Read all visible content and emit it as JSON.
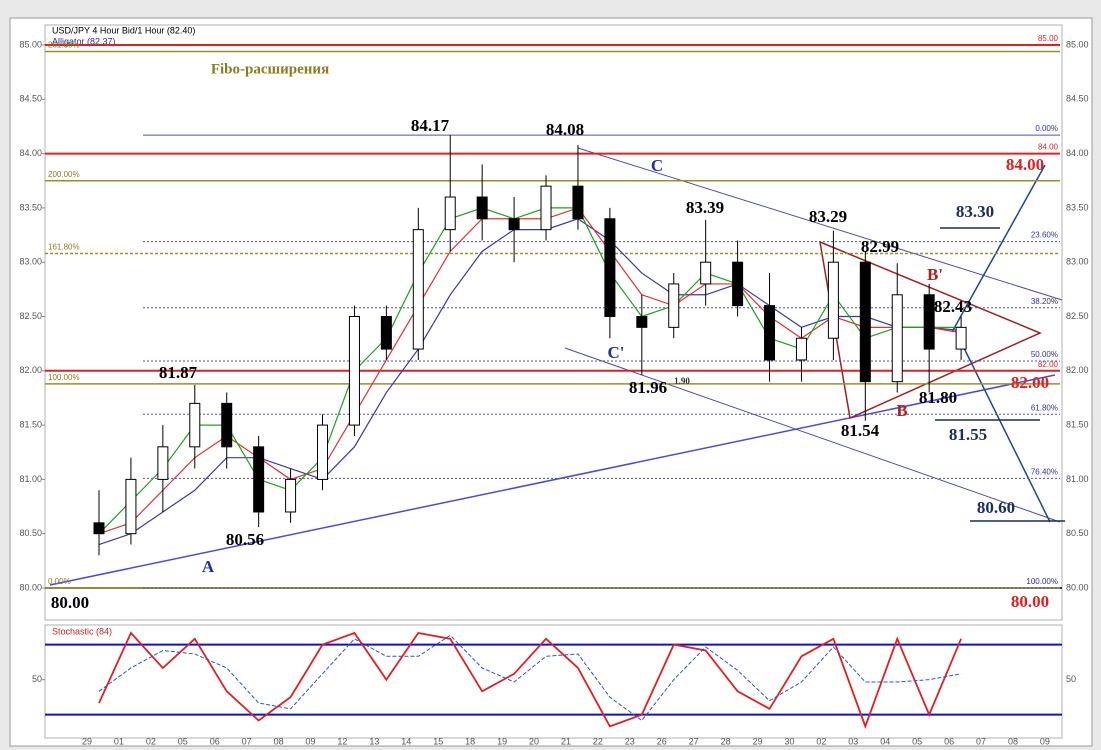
{
  "chart_data": [
    {
      "type": "candlestick",
      "title": "USD/JPY 4 Hour Bid/1 Hour (82.40)",
      "subtitle": "Alligator (82.37)",
      "categories": [
        "29",
        "01",
        "02",
        "05",
        "06",
        "07",
        "08",
        "09",
        "12",
        "13",
        "14",
        "15",
        "18",
        "19",
        "20",
        "21",
        "22",
        "23",
        "26",
        "27",
        "28",
        "29",
        "30",
        "02",
        "03",
        "04",
        "05",
        "06",
        "07",
        "08",
        "09"
      ],
      "open": [
        80.6,
        80.5,
        81.0,
        81.3,
        81.7,
        81.3,
        80.7,
        81.0,
        81.5,
        82.5,
        82.2,
        83.3,
        83.6,
        83.4,
        83.3,
        83.7,
        83.4,
        82.5,
        82.4,
        82.8,
        83.0,
        82.6,
        82.1,
        82.3,
        83.0,
        81.9,
        82.7,
        82.2,
        null,
        null,
        null
      ],
      "high": [
        80.9,
        81.2,
        81.5,
        81.87,
        81.8,
        81.4,
        81.1,
        81.6,
        82.6,
        82.6,
        83.5,
        84.17,
        83.9,
        83.6,
        83.8,
        84.08,
        83.5,
        82.7,
        82.9,
        83.39,
        83.2,
        82.9,
        82.4,
        83.29,
        83.1,
        82.99,
        82.8,
        82.5,
        null,
        null,
        null
      ],
      "low": [
        80.3,
        80.4,
        80.7,
        81.1,
        81.1,
        80.56,
        80.6,
        80.9,
        81.4,
        82.1,
        82.1,
        83.1,
        83.2,
        83.0,
        83.2,
        83.3,
        82.3,
        81.96,
        82.3,
        82.6,
        82.5,
        81.9,
        81.9,
        82.1,
        81.54,
        81.8,
        81.8,
        82.1,
        null,
        null,
        null
      ],
      "close": [
        80.5,
        81.0,
        81.3,
        81.7,
        81.3,
        80.7,
        81.0,
        81.5,
        82.5,
        82.2,
        83.3,
        83.6,
        83.4,
        83.3,
        83.7,
        83.4,
        82.5,
        82.4,
        82.8,
        83.0,
        82.6,
        82.1,
        82.3,
        83.0,
        81.9,
        82.7,
        82.2,
        82.4,
        null,
        null,
        null
      ],
      "up_color": "#ffffff",
      "down_color": "#000000",
      "series": [
        {
          "color": "#3a3aa0",
          "values": [
            80.4,
            80.5,
            80.7,
            80.9,
            81.2,
            81.2,
            81.1,
            81.0,
            81.3,
            81.8,
            82.2,
            82.7,
            83.1,
            83.3,
            83.3,
            83.4,
            83.2,
            82.9,
            82.7,
            82.7,
            82.8,
            82.6,
            82.4,
            82.5,
            82.5,
            82.4,
            82.4,
            82.37,
            null,
            null,
            null
          ]
        },
        {
          "color": "#e03030",
          "values": [
            80.5,
            80.6,
            80.9,
            81.2,
            81.4,
            81.2,
            81.0,
            81.1,
            81.6,
            82.1,
            82.6,
            83.1,
            83.4,
            83.4,
            83.4,
            83.5,
            83.1,
            82.7,
            82.6,
            82.8,
            82.8,
            82.5,
            82.3,
            82.5,
            82.4,
            82.4,
            82.4,
            82.35,
            null,
            null,
            null
          ]
        },
        {
          "color": "#20a020",
          "values": [
            80.5,
            80.8,
            81.1,
            81.5,
            81.5,
            81.0,
            80.9,
            81.2,
            82.0,
            82.3,
            82.9,
            83.4,
            83.5,
            83.4,
            83.5,
            83.5,
            82.9,
            82.5,
            82.6,
            82.9,
            82.8,
            82.3,
            82.2,
            82.7,
            82.3,
            82.4,
            82.4,
            82.4,
            null,
            null,
            null
          ]
        }
      ],
      "ylim": [
        80,
        85
      ],
      "yticks": [
        {
          "value": 80,
          "label": "80.00"
        },
        {
          "value": 80.5,
          "label": "80.50"
        },
        {
          "value": 81,
          "label": "81.00"
        },
        {
          "value": 81.5,
          "label": "81.50"
        },
        {
          "value": 82,
          "label": "82.00"
        },
        {
          "value": 82.5,
          "label": "82.50"
        },
        {
          "value": 83,
          "label": "83.00"
        },
        {
          "value": 83.5,
          "label": "83.50"
        },
        {
          "value": 84,
          "label": "84.00"
        },
        {
          "value": 84.5,
          "label": "84.50"
        },
        {
          "value": 85,
          "label": "85.00"
        }
      ],
      "grid": false,
      "red_levels": [
        {
          "value": 85,
          "label": "85.00"
        },
        {
          "value": 84,
          "label": "84.00"
        },
        {
          "value": 82,
          "label": "82.00"
        }
      ],
      "olive_levels": [
        {
          "value": 84.94,
          "label": "261.80%"
        },
        {
          "value": 83.75,
          "label": "200.00%"
        },
        {
          "value": 83.08,
          "label": "161.80%"
        },
        {
          "value": 81.88,
          "label": "100.00%"
        },
        {
          "value": 80.0,
          "label": "0.00%"
        }
      ],
      "blue_levels": [
        {
          "value": 84.17,
          "label": "0.00%"
        },
        {
          "value": 83.19,
          "label": "23.60%"
        },
        {
          "value": 82.58,
          "label": "38.20%"
        },
        {
          "value": 82.09,
          "label": "50.00%"
        },
        {
          "value": 81.6,
          "label": "61.80%"
        },
        {
          "value": 81.01,
          "label": "76.40%"
        },
        {
          "value": 80.0,
          "label": "100.00%"
        }
      ],
      "annotations": [
        {
          "text": "Fibo-расширения",
          "color": "#8b7d1e"
        },
        {
          "text": "84.17",
          "color": "#000000"
        },
        {
          "text": "84.08",
          "color": "#000000"
        },
        {
          "text": "83.39",
          "color": "#000000"
        },
        {
          "text": "83.29",
          "color": "#000000"
        },
        {
          "text": "82.99",
          "color": "#000000"
        },
        {
          "text": "82.43",
          "color": "#000000"
        },
        {
          "text": "81.87",
          "color": "#000000"
        },
        {
          "text": "80.56",
          "color": "#000000"
        },
        {
          "text": "81.96",
          "color": "#000000"
        },
        {
          "text": "1.90",
          "color": "#333333"
        },
        {
          "text": "81.54",
          "color": "#000000"
        },
        {
          "text": "81.80",
          "color": "#000000"
        },
        {
          "text": "80.00",
          "color": "#000000"
        },
        {
          "text": "84.00",
          "color": "#e02020"
        },
        {
          "text": "82.00",
          "color": "#e02020"
        },
        {
          "text": "80.00",
          "color": "#e02020"
        },
        {
          "text": "83.30",
          "color": "#1a2e5a"
        },
        {
          "text": "81.55",
          "color": "#1a2e5a"
        },
        {
          "text": "80.60",
          "color": "#1a2e5a"
        },
        {
          "text": "A",
          "color": "#2030a0"
        },
        {
          "text": "B",
          "color": "#b02020"
        },
        {
          "text": "B'",
          "color": "#b02020"
        },
        {
          "text": "C",
          "color": "#2030a0"
        },
        {
          "text": "C'",
          "color": "#2030a0"
        }
      ]
    },
    {
      "type": "line",
      "title": "Stochastic (84)",
      "series": [
        {
          "color": "#e02020",
          "dash": false,
          "values": [
            30,
            90,
            60,
            85,
            40,
            15,
            35,
            80,
            90,
            50,
            90,
            85,
            40,
            55,
            85,
            60,
            10,
            20,
            80,
            75,
            40,
            25,
            70,
            85,
            10,
            85,
            20,
            85,
            null,
            null,
            null
          ]
        },
        {
          "color": "#3050d0",
          "dash": true,
          "values": [
            40,
            60,
            75,
            72,
            60,
            30,
            25,
            55,
            85,
            70,
            70,
            88,
            60,
            48,
            70,
            72,
            35,
            15,
            50,
            78,
            58,
            32,
            48,
            78,
            48,
            48,
            50,
            55,
            null,
            null,
            null
          ]
        }
      ],
      "ylim": [
        0,
        100
      ],
      "yticks": [
        50
      ],
      "levels": [
        80,
        20
      ],
      "levels_color": "#1010d0"
    }
  ]
}
